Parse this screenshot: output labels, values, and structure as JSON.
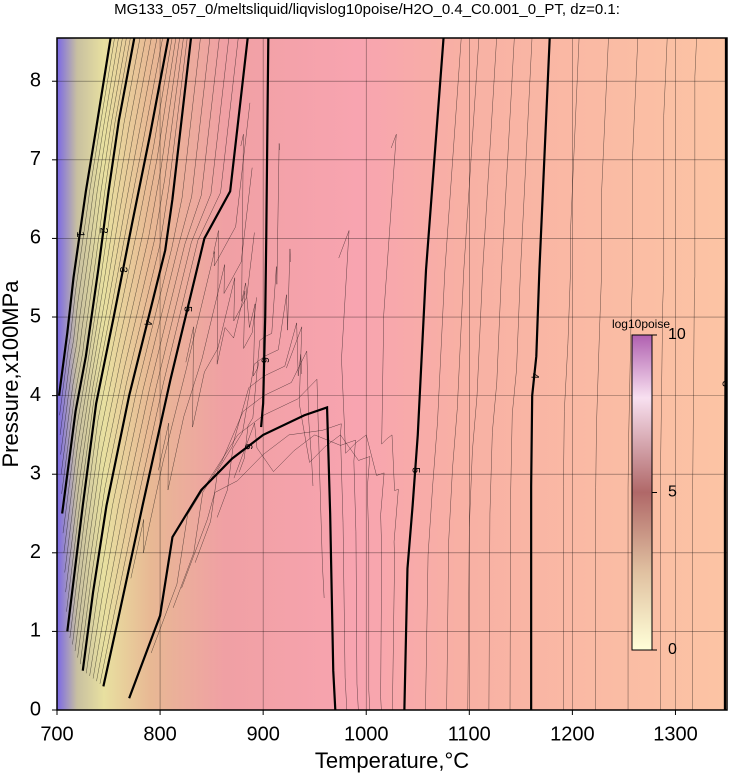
{
  "chart_data": {
    "type": "contour",
    "title": "MG133_057_0/meltsliquid/liqvislog10poise/H2O_0.4_C0.001_0_PT, dz=0.1:",
    "xlabel": "Temperature,°C",
    "ylabel": "Pressure,x100MPa",
    "xlim": [
      700,
      1350
    ],
    "ylim": [
      0,
      8.55
    ],
    "xticks": [
      700,
      800,
      900,
      1000,
      1100,
      1200,
      1300
    ],
    "yticks": [
      0,
      1,
      2,
      3,
      4,
      5,
      6,
      7,
      8
    ],
    "grid": true,
    "contours": [
      {
        "level": 3,
        "x": [
          1348,
          1348,
          1349,
          1349
        ],
        "y": [
          0,
          2.8,
          5.5,
          8.55
        ]
      },
      {
        "level": 4,
        "x": [
          1160,
          1160,
          1161,
          1165,
          1168,
          1178
        ],
        "y": [
          0,
          2.85,
          4.0,
          4.5,
          5.6,
          8.55
        ]
      },
      {
        "level": 5,
        "x": [
          1037,
          1040,
          1045,
          1050,
          1058,
          1075
        ],
        "y": [
          0,
          1.8,
          2.6,
          3.5,
          5.6,
          8.55
        ]
      },
      {
        "level": 6,
        "x": [
          970,
          968,
          965,
          962,
          940,
          900,
          870,
          840,
          812,
          800,
          770
        ],
        "y": [
          0,
          0.5,
          2.5,
          3.85,
          3.75,
          3.5,
          3.2,
          2.8,
          2.2,
          1.2,
          0.15
        ]
      },
      {
        "level": 6,
        "x": [
          905,
          903,
          902,
          900,
          898
        ],
        "y": [
          8.55,
          6.0,
          5.0,
          3.9,
          3.6
        ]
      },
      {
        "level": 5,
        "x": [
          745,
          760,
          783,
          810,
          843,
          868,
          885
        ],
        "y": [
          0.3,
          1.2,
          2.6,
          4.2,
          6.0,
          6.6,
          8.55
        ]
      },
      {
        "level": 4,
        "x": [
          725,
          735,
          748,
          770,
          805,
          812,
          830
        ],
        "y": [
          0.5,
          1.5,
          2.6,
          4.0,
          5.85,
          6.5,
          8.55
        ]
      },
      {
        "level": 3,
        "x": [
          710,
          725,
          738,
          755,
          773,
          790,
          808
        ],
        "y": [
          1.0,
          2.6,
          3.9,
          5.0,
          6.2,
          7.3,
          8.55
        ]
      },
      {
        "level": 2,
        "x": [
          705,
          718,
          728,
          740,
          750,
          760,
          775
        ],
        "y": [
          2.5,
          3.8,
          4.5,
          5.6,
          6.6,
          7.5,
          8.55
        ]
      },
      {
        "level": 1,
        "x": [
          702,
          710,
          716,
          728,
          738,
          752
        ],
        "y": [
          4.0,
          4.8,
          5.5,
          6.6,
          7.4,
          8.55
        ]
      }
    ],
    "colorbar": {
      "label": "log10poise",
      "lim": [
        0,
        10
      ],
      "ticks": [
        0,
        5,
        10
      ]
    }
  }
}
